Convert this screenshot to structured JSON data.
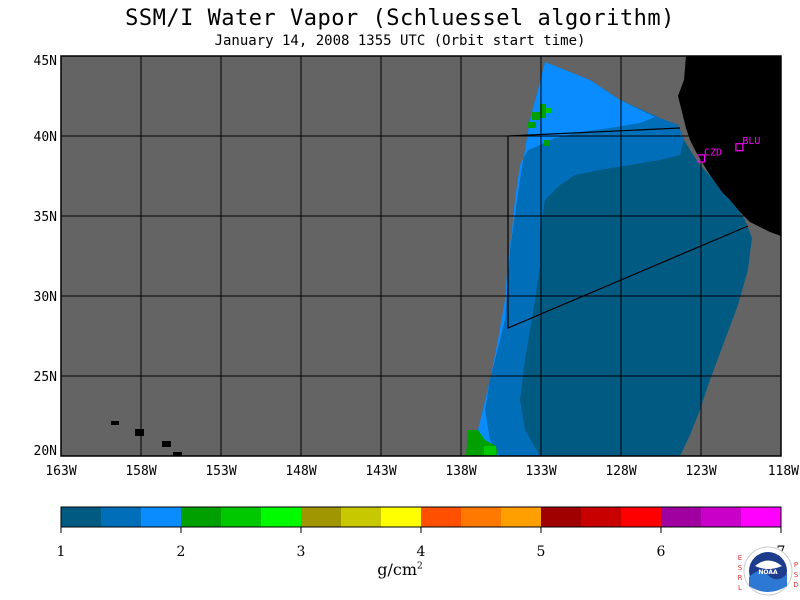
{
  "title": "SSM/I Water Vapor (Schluessel algorithm)",
  "subtitle": "January 14, 2008  1355 UTC  (Orbit start time)",
  "lat_labels": [
    "45N",
    "40N",
    "35N",
    "30N",
    "25N",
    "20N"
  ],
  "lon_labels": [
    "163W",
    "158W",
    "153W",
    "148W",
    "143W",
    "138W",
    "133W",
    "128W",
    "123W",
    "118W"
  ],
  "stations": [
    {
      "id": "CZD",
      "lon": -123.0,
      "lat": 38.6
    },
    {
      "id": "BLU",
      "lon": -120.6,
      "lat": 39.3
    }
  ],
  "colorbar": {
    "ticks": [
      "1",
      "2",
      "3",
      "4",
      "5",
      "6",
      "7"
    ],
    "unit_base": "g/cm",
    "unit_exp": "2",
    "colors": [
      "#005a82",
      "#006eb9",
      "#0a8cff",
      "#00a000",
      "#00c800",
      "#00fa00",
      "#a09600",
      "#c8c800",
      "#ffff00",
      "#ff5000",
      "#ff7800",
      "#ffa000",
      "#a00000",
      "#c80000",
      "#ff0000",
      "#a000a0",
      "#c800c8",
      "#ff00ff"
    ]
  },
  "colors": {
    "land": "#000000",
    "nodata": "#646464",
    "ocean_low": "#005a82",
    "ocean_mid": "#006eb9",
    "ocean_high": "#0a8cff",
    "green": "#00a000",
    "station": "#ff00ff"
  },
  "logo": {
    "left_text": "ESRL",
    "right_text": "PSD",
    "center": "NOAA"
  }
}
